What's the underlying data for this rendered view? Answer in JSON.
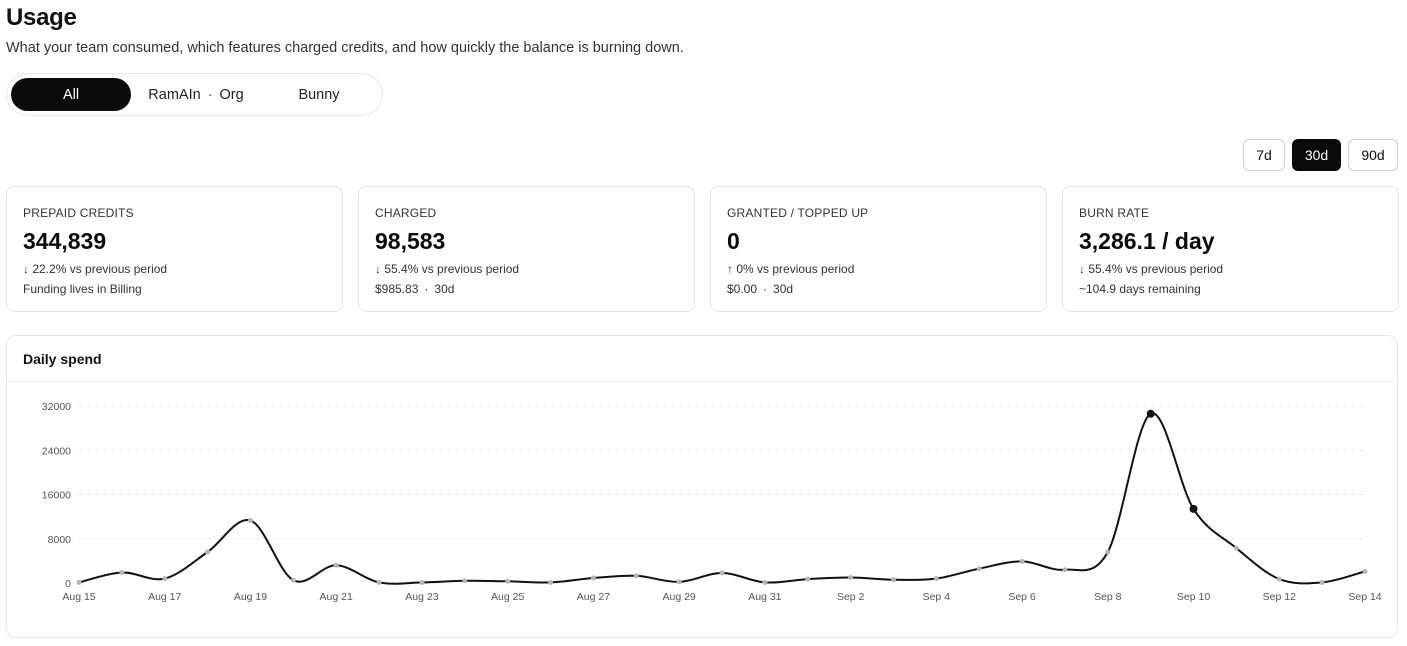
{
  "header": {
    "title": "Usage",
    "subtitle": "What your team consumed, which features charged credits, and how quickly the balance is burning down."
  },
  "scope_tabs": [
    {
      "label": "All",
      "active": true
    },
    {
      "label": "RamAIn",
      "suffix": "Org",
      "active": false
    },
    {
      "label": "Bunny",
      "active": false
    }
  ],
  "scope_separator": "·",
  "ranges": [
    {
      "label": "7d",
      "active": false
    },
    {
      "label": "30d",
      "active": true
    },
    {
      "label": "90d",
      "active": false
    }
  ],
  "cards": [
    {
      "label": "PREPAID CREDITS",
      "value": "344,839",
      "delta": "↓ 22.2% vs previous period",
      "note": "Funding lives in Billing"
    },
    {
      "label": "CHARGED",
      "value": "98,583",
      "delta": "↓ 55.4% vs previous period",
      "note_amount": "$985.83",
      "note_period": "30d"
    },
    {
      "label": "GRANTED / TOPPED UP",
      "value": "0",
      "delta": "↑ 0% vs previous period",
      "note_amount": "$0.00",
      "note_period": "30d"
    },
    {
      "label": "BURN RATE",
      "value": "3,286.1 / day",
      "delta": "↓ 55.4% vs previous period",
      "note": "~104.9 days remaining"
    }
  ],
  "note_separator": "·",
  "chart": {
    "title": "Daily spend"
  },
  "chart_data": {
    "type": "line",
    "title": "Daily spend",
    "xlabel": "",
    "ylabel": "",
    "ylim": [
      0,
      32000
    ],
    "yticks": [
      0,
      8000,
      16000,
      24000,
      32000
    ],
    "grid": true,
    "x": [
      "Aug 15",
      "Aug 16",
      "Aug 17",
      "Aug 18",
      "Aug 19",
      "Aug 20",
      "Aug 21",
      "Aug 22",
      "Aug 23",
      "Aug 24",
      "Aug 25",
      "Aug 26",
      "Aug 27",
      "Aug 28",
      "Aug 29",
      "Aug 30",
      "Aug 31",
      "Sep 1",
      "Sep 2",
      "Sep 3",
      "Sep 4",
      "Sep 5",
      "Sep 6",
      "Sep 7",
      "Sep 8",
      "Sep 9",
      "Sep 10",
      "Sep 11",
      "Sep 12",
      "Sep 13",
      "Sep 14"
    ],
    "x_tick_labels": [
      "Aug 15",
      "Aug 17",
      "Aug 19",
      "Aug 21",
      "Aug 23",
      "Aug 25",
      "Aug 27",
      "Aug 29",
      "Aug 31",
      "Sep 2",
      "Sep 4",
      "Sep 6",
      "Sep 8",
      "Sep 10",
      "Sep 12",
      "Sep 14"
    ],
    "series": [
      {
        "values": [
          100,
          1900,
          800,
          5600,
          11300,
          500,
          3200,
          100,
          100,
          400,
          300,
          100,
          900,
          1300,
          200,
          1800,
          100,
          700,
          1000,
          600,
          800,
          2600,
          3900,
          2400,
          5600,
          30600,
          13400,
          6300,
          700,
          100,
          2100
        ],
        "highlighted_points": [
          25,
          26
        ]
      }
    ],
    "colors": {
      "line": "#111111",
      "point": "#b5b5b5",
      "highlight_point": "#111111",
      "grid": "#e3e3e3"
    }
  }
}
